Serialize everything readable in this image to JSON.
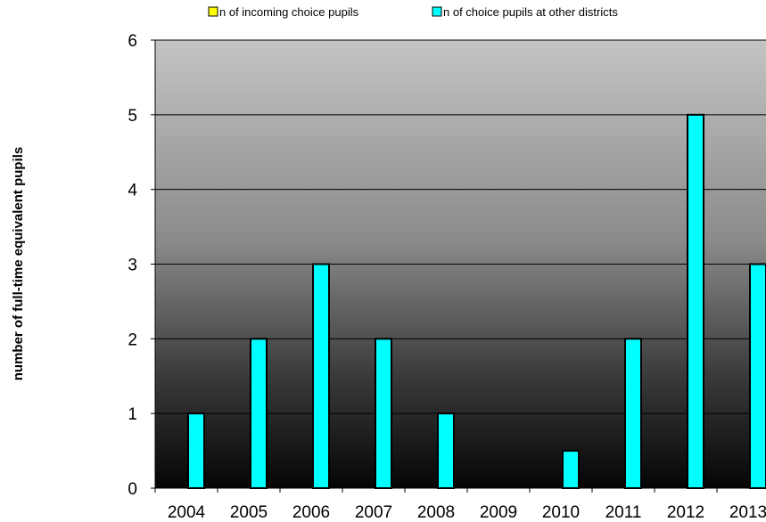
{
  "chart_data": {
    "type": "bar",
    "title": "",
    "xlabel": "",
    "ylabel": "number of full-time equivalent pupils",
    "categories": [
      "2004",
      "2005",
      "2006",
      "2007",
      "2008",
      "2009",
      "2010",
      "2011",
      "2012",
      "2013"
    ],
    "series": [
      {
        "name": "n of incoming choice pupils",
        "color": "#ffff00",
        "values": [
          0,
          0,
          0,
          0,
          0,
          0,
          0,
          0,
          0,
          0
        ]
      },
      {
        "name": "n of choice pupils at other districts",
        "color": "#00ffff",
        "values": [
          1,
          2,
          3,
          2,
          1,
          0,
          0.5,
          2,
          5,
          3
        ]
      }
    ],
    "yticks": [
      "0",
      "1",
      "2",
      "3",
      "4",
      "5",
      "6"
    ],
    "ylim": [
      0,
      6
    ],
    "grid": true,
    "legend_position": "top",
    "plot_background": "gradient light-gray to black"
  }
}
